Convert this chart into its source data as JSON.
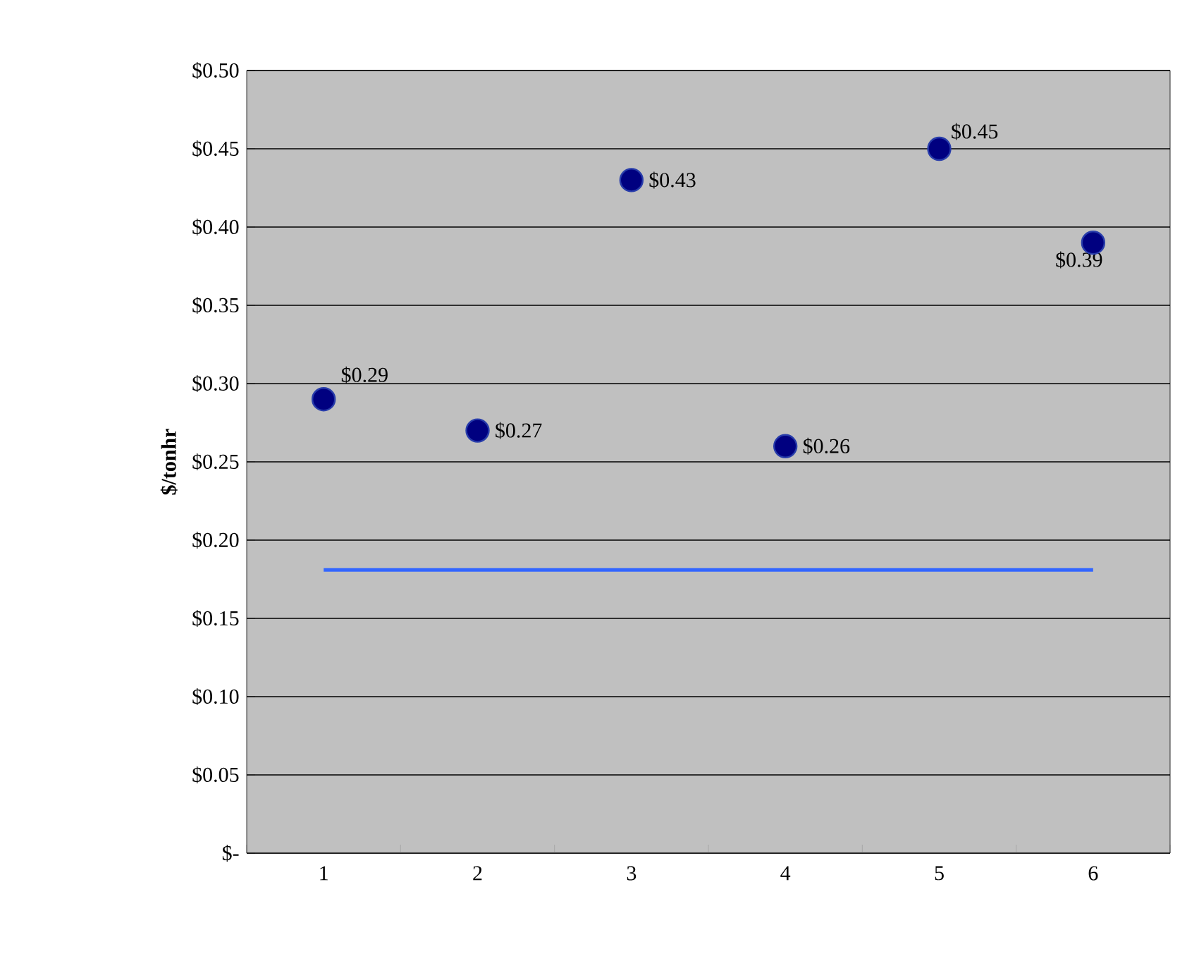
{
  "chart_data": {
    "type": "scatter",
    "ylabel": "$/tonhr",
    "categories": [
      "1",
      "2",
      "3",
      "4",
      "5",
      "6"
    ],
    "series": [
      {
        "color": "#000080",
        "values": [
          0.29,
          0.27,
          0.43,
          0.26,
          0.45,
          0.39
        ],
        "value_labels": [
          "$0.29",
          "$0.27",
          "$0.43",
          "$0.26",
          "$0.45",
          "$0.39"
        ]
      },
      {
        "type": "line",
        "marker": "none",
        "color": "#3366ff",
        "values": [
          0.181,
          0.181,
          0.181,
          0.181,
          0.181,
          0.181
        ]
      }
    ],
    "ylim": [
      0,
      0.5
    ],
    "yticks": [
      {
        "value": 0,
        "label": "$-"
      },
      {
        "value": 0.05,
        "label": "$0.05"
      },
      {
        "value": 0.1,
        "label": "$0.10"
      },
      {
        "value": 0.15,
        "label": "$0.15"
      },
      {
        "value": 0.2,
        "label": "$0.20"
      },
      {
        "value": 0.25,
        "label": "$0.25"
      },
      {
        "value": 0.3,
        "label": "$0.30"
      },
      {
        "value": 0.35,
        "label": "$0.35"
      },
      {
        "value": 0.4,
        "label": "$0.40"
      },
      {
        "value": 0.45,
        "label": "$0.45"
      },
      {
        "value": 0.5,
        "label": "$0.50"
      }
    ],
    "grid": "y",
    "marker": "circle"
  }
}
